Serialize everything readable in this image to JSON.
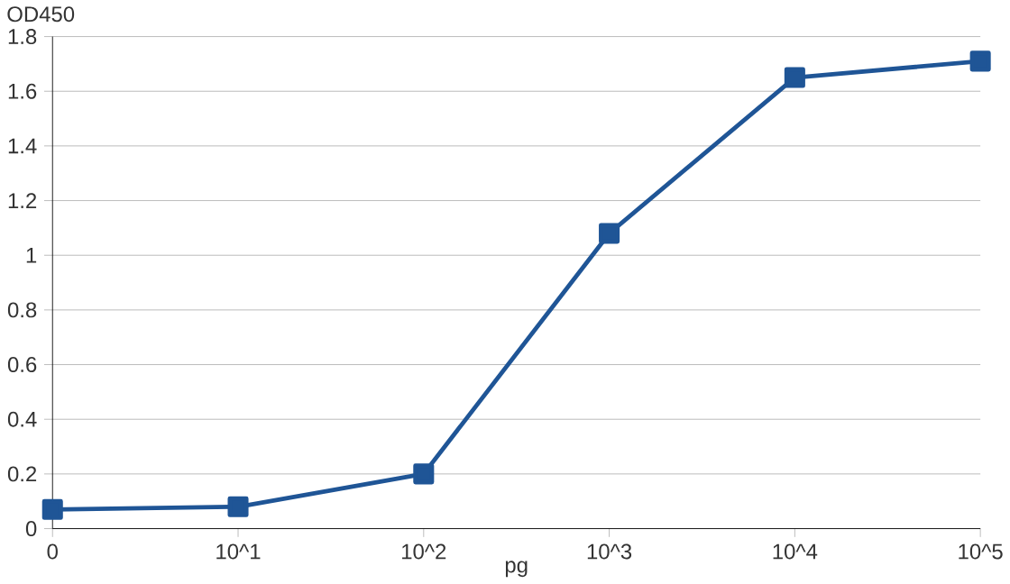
{
  "chart_data": {
    "type": "line",
    "ylabel": "OD450",
    "xlabel": "pg",
    "categories": [
      "0",
      "10^1",
      "10^2",
      "10^3",
      "10^4",
      "10^5"
    ],
    "series": [
      {
        "color": "#1f5596",
        "values": [
          0.07,
          0.08,
          0.2,
          1.08,
          1.65,
          1.71
        ]
      }
    ],
    "ylim": [
      0,
      1.8
    ],
    "yticks": [
      0,
      0.2,
      0.4,
      0.6,
      0.8,
      1,
      1.2,
      1.4,
      1.6,
      1.8
    ],
    "grid": "y",
    "marker": "square",
    "line_style": "solid"
  }
}
